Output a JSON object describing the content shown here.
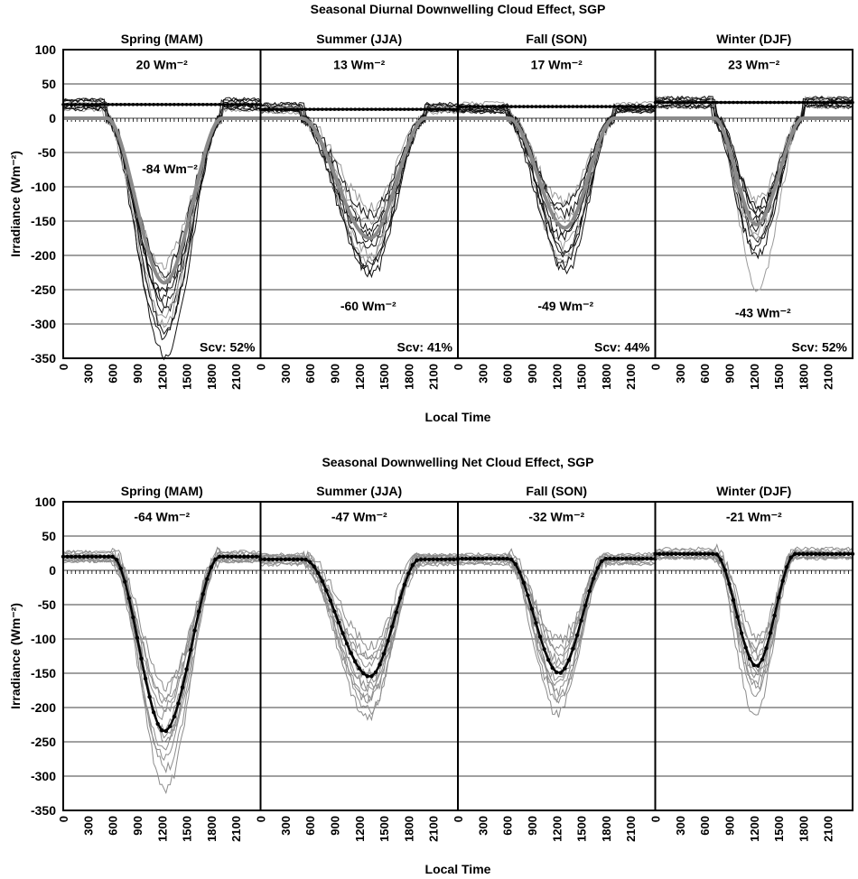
{
  "chart_data": [
    {
      "type": "line",
      "title": "Seasonal Diurnal Downwelling Cloud Effect, SGP",
      "ylabel": "Irradiance (Wm⁻²)",
      "xlabel": "Local Time",
      "ylim": [
        -350,
        100
      ],
      "yticks": [
        100,
        50,
        0,
        -50,
        -100,
        -150,
        -200,
        -250,
        -300,
        -350
      ],
      "xlim": [
        0,
        2400
      ],
      "xticks": [
        "0",
        "300",
        "600",
        "900",
        "1200",
        "1500",
        "1800",
        "2100"
      ],
      "grid": true,
      "panels": [
        {
          "name": "Spring (MAM)",
          "lw_label": "20 Wm⁻²",
          "sw_label": "-84 Wm⁻²",
          "scv": "Scv: 52%",
          "lw_value": 20,
          "sunrise": 530,
          "sunset": 1930,
          "trough": -240,
          "trough_time": 1230,
          "members_trough": [
            -215,
            -260,
            -280,
            -300,
            -320,
            -345,
            -235,
            -250,
            -270,
            -290,
            -225,
            -310
          ]
        },
        {
          "name": "Summer (JJA)",
          "lw_label": "13 Wm⁻²",
          "sw_label": "-60 Wm⁻²",
          "scv": "Scv: 41%",
          "lw_value": 13,
          "sunrise": 500,
          "sunset": 2000,
          "trough": -175,
          "trough_time": 1330,
          "members_trough": [
            -130,
            -160,
            -180,
            -200,
            -215,
            -230,
            -150,
            -170,
            -190,
            -205,
            -140,
            -220
          ]
        },
        {
          "name": "Fall (SON)",
          "lw_label": "17 Wm⁻²",
          "sw_label": "-49 Wm⁻²",
          "scv": "Scv: 44%",
          "lw_value": 17,
          "sunrise": 620,
          "sunset": 1900,
          "trough": -160,
          "trough_time": 1300,
          "members_trough": [
            -120,
            -140,
            -165,
            -185,
            -200,
            -225,
            -150,
            -175,
            -195,
            -210,
            -130,
            -215
          ]
        },
        {
          "name": "Winter (DJF)",
          "lw_label": "23 Wm⁻²",
          "sw_label": "-43 Wm⁻²",
          "scv": "Scv: 52%",
          "lw_value": 23,
          "sunrise": 720,
          "sunset": 1800,
          "trough": -155,
          "trough_time": 1230,
          "members_trough": [
            -120,
            -135,
            -150,
            -165,
            -180,
            -200,
            -250,
            -140,
            -160,
            -175,
            -190,
            -130
          ]
        }
      ]
    },
    {
      "type": "line",
      "title": "Seasonal Downwelling Net Cloud Effect, SGP",
      "ylabel": "Irradiance (Wm⁻²)",
      "xlabel": "Local Time",
      "ylim": [
        -350,
        100
      ],
      "yticks": [
        100,
        50,
        0,
        -50,
        -100,
        -150,
        -200,
        -250,
        -300,
        -350
      ],
      "xlim": [
        0,
        2400
      ],
      "xticks": [
        "0",
        "300",
        "600",
        "900",
        "1200",
        "1500",
        "1800",
        "2100"
      ],
      "grid": true,
      "panels": [
        {
          "name": "Spring (MAM)",
          "lw_label": "-64 Wm⁻²",
          "lw_value": 20,
          "sunrise": 600,
          "sunset": 1900,
          "trough": -235,
          "trough_time": 1230,
          "members_trough": [
            -170,
            -190,
            -210,
            -230,
            -250,
            -270,
            -290,
            -320,
            -200,
            -260,
            -180,
            -240
          ]
        },
        {
          "name": "Summer (JJA)",
          "lw_label": "-47 Wm⁻²",
          "lw_value": 16,
          "sunrise": 530,
          "sunset": 1930,
          "trough": -155,
          "trough_time": 1330,
          "members_trough": [
            -110,
            -125,
            -140,
            -160,
            -175,
            -190,
            -205,
            -215,
            -130,
            -150,
            -170,
            -185
          ]
        },
        {
          "name": "Fall (SON)",
          "lw_label": "-32 Wm⁻²",
          "lw_value": 17,
          "sunrise": 620,
          "sunset": 1800,
          "trough": -150,
          "trough_time": 1230,
          "members_trough": [
            -100,
            -115,
            -130,
            -145,
            -160,
            -175,
            -190,
            -210,
            -120,
            -140,
            -165,
            -185
          ]
        },
        {
          "name": "Winter (DJF)",
          "lw_label": "-21 Wm⁻²",
          "lw_value": 24,
          "sunrise": 730,
          "sunset": 1700,
          "trough": -140,
          "trough_time": 1230,
          "members_trough": [
            -100,
            -115,
            -125,
            -140,
            -150,
            -165,
            -180,
            -210,
            -110,
            -130,
            -155,
            -170
          ]
        }
      ]
    }
  ]
}
